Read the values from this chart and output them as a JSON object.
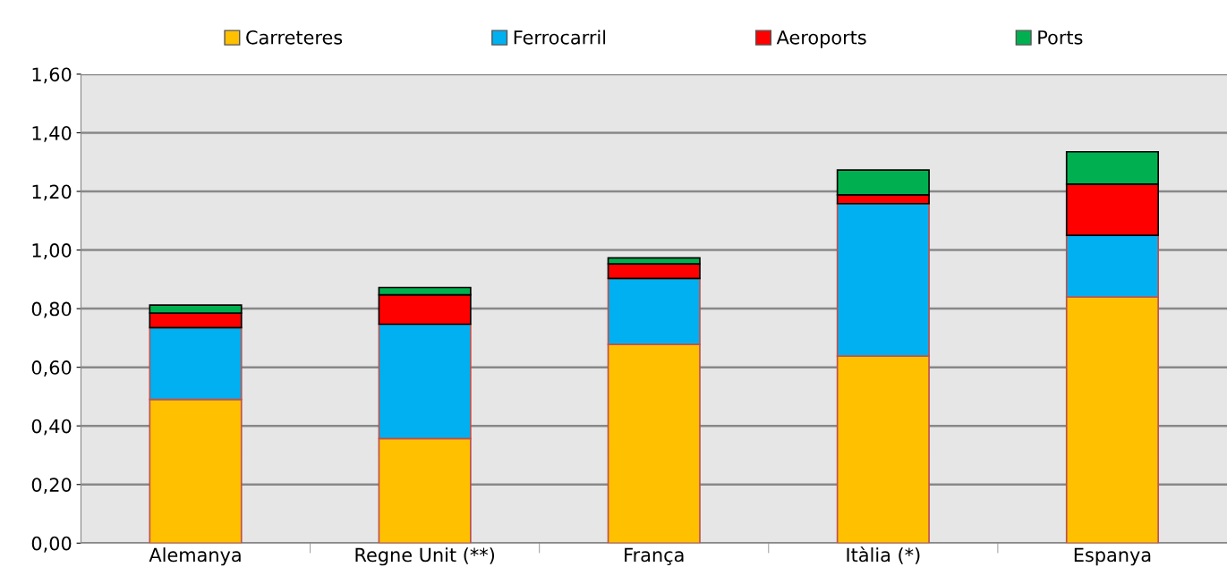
{
  "chart_data": {
    "type": "bar",
    "stacked": true,
    "categories": [
      "Alemanya",
      "Regne Unit (**)",
      "França",
      "Itàlia (*)",
      "Espanya"
    ],
    "series": [
      {
        "name": "Carreteres",
        "color": "#ffc000",
        "values": [
          0.49,
          0.357,
          0.678,
          0.638,
          0.84
        ]
      },
      {
        "name": "Ferrocarril",
        "color": "#00b0f0",
        "values": [
          0.245,
          0.39,
          0.225,
          0.52,
          0.21
        ]
      },
      {
        "name": "Aeroports",
        "color": "#ff0000",
        "values": [
          0.05,
          0.1,
          0.05,
          0.03,
          0.175
        ]
      },
      {
        "name": "Ports",
        "color": "#00b050",
        "values": [
          0.027,
          0.025,
          0.02,
          0.085,
          0.11
        ]
      }
    ],
    "ylim": [
      0,
      1.6
    ],
    "yticks": [
      {
        "value": 0,
        "label": "0,00"
      },
      {
        "value": 0.2,
        "label": "0,20"
      },
      {
        "value": 0.4,
        "label": "0,40"
      },
      {
        "value": 0.6,
        "label": "0,60"
      },
      {
        "value": 0.8,
        "label": "0,80"
      },
      {
        "value": 1.0,
        "label": "1,00"
      },
      {
        "value": 1.2,
        "label": "1,20"
      },
      {
        "value": 1.4,
        "label": "1,40"
      },
      {
        "value": 1.6,
        "label": "1,60"
      }
    ],
    "grid": "y",
    "legend": "top"
  }
}
